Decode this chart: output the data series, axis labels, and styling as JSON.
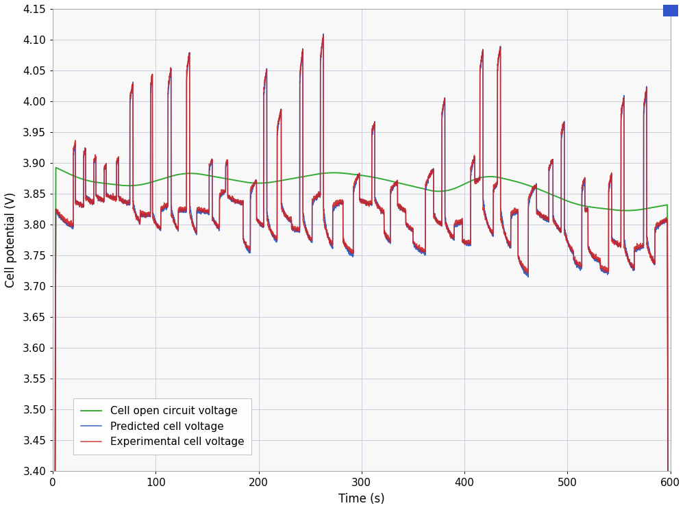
{
  "xlabel": "Time (s)",
  "ylabel": "Cell potential (V)",
  "xlim": [
    0,
    600
  ],
  "ylim": [
    3.4,
    4.15
  ],
  "yticks": [
    3.4,
    3.45,
    3.5,
    3.55,
    3.6,
    3.65,
    3.7,
    3.75,
    3.8,
    3.85,
    3.9,
    3.95,
    4.0,
    4.05,
    4.1,
    4.15
  ],
  "xticks": [
    0,
    100,
    200,
    300,
    400,
    500,
    600
  ],
  "color_predicted": "#3366cc",
  "color_opencircuit": "#33aa33",
  "color_experimental": "#cc2222",
  "color_background": "#f8f8f8",
  "color_grid": "#ccccdd",
  "legend_labels": [
    "Predicted cell voltage",
    "Cell open circuit voltage",
    "Experimental cell voltage"
  ],
  "lw_pred": 1.1,
  "lw_ocv": 1.4,
  "lw_exp": 1.1,
  "figsize": [
    10.0,
    7.45
  ],
  "dpi": 100
}
